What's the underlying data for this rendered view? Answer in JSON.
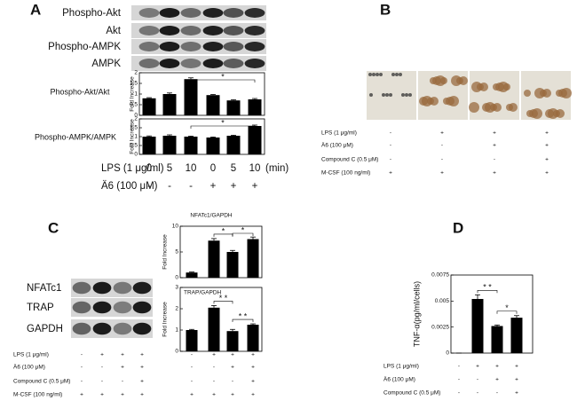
{
  "panels": {
    "A": {
      "label": "A",
      "blots": [
        "Phospho-Akt",
        "Akt",
        "Phospho-AMPK",
        "AMPK"
      ],
      "conditions": [
        {
          "label": "LPS (1 μg/ml)",
          "values": [
            "0",
            "5",
            "10",
            "0",
            "5",
            "10"
          ],
          "unit": "(min)"
        },
        {
          "label": "Ä6 (100 μM)",
          "values": [
            "-",
            "-",
            "-",
            "+",
            "+",
            "+"
          ]
        }
      ]
    },
    "B": {
      "label": "B",
      "conditions": [
        {
          "label": "LPS (1 μg/ml)",
          "values": [
            "-",
            "+",
            "+",
            "+"
          ]
        },
        {
          "label": "Ä6 (100 μM)",
          "values": [
            "-",
            "-",
            "+",
            "+"
          ]
        },
        {
          "label": "Compound C (0.5 μM)",
          "values": [
            "-",
            "-",
            "-",
            "+"
          ]
        },
        {
          "label": "M-CSF (100 ng/ml)",
          "values": [
            "+",
            "+",
            "+",
            "+"
          ]
        }
      ]
    },
    "C": {
      "label": "C",
      "blots": [
        "NFATc1",
        "TRAP",
        "GAPDH"
      ],
      "conditions": [
        {
          "label": "LPS (1 μg/ml)",
          "values": [
            "-",
            "+",
            "+",
            "+",
            "-",
            "+",
            "+",
            "+"
          ]
        },
        {
          "label": "Ä6 (100 μM)",
          "values": [
            "-",
            "-",
            "+",
            "+",
            "-",
            "-",
            "+",
            "+"
          ]
        },
        {
          "label": "Compound C (0.5 μM)",
          "values": [
            "-",
            "-",
            "-",
            "+",
            "-",
            "-",
            "-",
            "+"
          ]
        },
        {
          "label": "M-CSF (100 ng/ml)",
          "values": [
            "+",
            "+",
            "+",
            "+",
            "+",
            "+",
            "+",
            "+"
          ]
        }
      ]
    },
    "D": {
      "label": "D",
      "conditions": [
        {
          "label": "LPS (1 μg/ml)",
          "values": [
            "-",
            "+",
            "+",
            "+"
          ]
        },
        {
          "label": "Ä6 (100 μM)",
          "values": [
            "-",
            "-",
            "+",
            "+"
          ]
        },
        {
          "label": "Compound C (0.5 μM)",
          "values": [
            "-",
            "-",
            "-",
            "+"
          ]
        }
      ]
    }
  },
  "chart_data": [
    {
      "type": "bar",
      "title": "Phospho-Akt/Akt",
      "y_label": "Fold Increase",
      "color": "#000000",
      "values": [
        0.8,
        1.0,
        1.7,
        0.95,
        0.7,
        0.75
      ],
      "errors": [
        0.03,
        0.05,
        0.06,
        0.03,
        0.03,
        0.04
      ],
      "ylim": [
        0,
        2
      ],
      "yticks": [
        0,
        0.5,
        1,
        1.5,
        2
      ],
      "annotations": [
        "*"
      ]
    },
    {
      "type": "bar",
      "title": "Phospho-AMPK/AMPK",
      "y_label": "Fold Increase",
      "color": "#000000",
      "values": [
        1.0,
        1.05,
        1.0,
        0.95,
        1.05,
        1.6
      ],
      "errors": [
        0.04,
        0.05,
        0.03,
        0.03,
        0.03,
        0.05
      ],
      "ylim": [
        0,
        2
      ],
      "yticks": [
        0,
        0.5,
        1,
        1.5,
        2
      ],
      "annotations": [
        "*"
      ]
    },
    {
      "type": "bar",
      "title": "NFATc1/GAPDH",
      "y_label": "Fold Increase",
      "color": "#000000",
      "values": [
        1,
        7.2,
        5,
        7.5
      ],
      "errors": [
        0.1,
        0.4,
        0.3,
        0.4
      ],
      "ylim": [
        0,
        10
      ],
      "yticks": [
        0,
        5,
        10
      ],
      "annotations": [
        "*",
        "*"
      ]
    },
    {
      "type": "bar",
      "title": "TRAP/GAPDH",
      "y_label": "Fold Increase",
      "color": "#000000",
      "values": [
        1,
        2.05,
        0.95,
        1.25
      ],
      "errors": [
        0.03,
        0.1,
        0.08,
        0.04
      ],
      "ylim": [
        0,
        3
      ],
      "yticks": [
        0,
        1,
        2,
        3
      ],
      "annotations": [
        "* *",
        "* *"
      ]
    },
    {
      "type": "bar",
      "y_label": "TNF-α(pg/ml/cells)",
      "color": "#000000",
      "values": [
        0,
        0.0052,
        0.0026,
        0.0034
      ],
      "errors": [
        0,
        0.0004,
        0.0001,
        0.0002
      ],
      "ylim": [
        0,
        0.0075
      ],
      "yticks": [
        0,
        0.0025,
        0.005,
        0.0075
      ],
      "annotations": [
        "* *",
        "*"
      ]
    }
  ]
}
